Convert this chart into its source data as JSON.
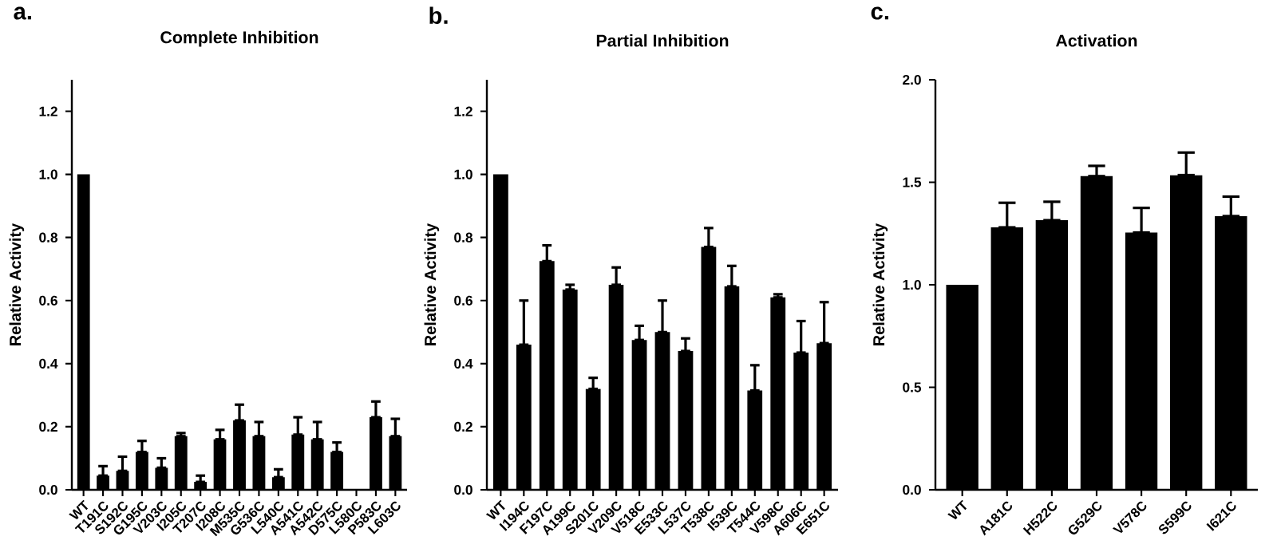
{
  "chart_data": [
    {
      "type": "bar",
      "title": "Complete Inhibition",
      "ylabel": "Relative Activity",
      "annotations": [
        "a."
      ],
      "color": "#000000",
      "categories": [
        "WT",
        "T191C",
        "S192C",
        "G195C",
        "V203C",
        "I205C",
        "T207C",
        "I208C",
        "M535C",
        "G536C",
        "L540C",
        "A541C",
        "A542C",
        "D575C",
        "L580C",
        "P583C",
        "L603C"
      ],
      "values": [
        1.0,
        0.045,
        0.06,
        0.12,
        0.07,
        0.17,
        0.025,
        0.16,
        0.22,
        0.17,
        0.04,
        0.175,
        0.16,
        0.12,
        0,
        0.23,
        0.17
      ],
      "errors": [
        null,
        [
          0.045,
          0.075
        ],
        [
          0.06,
          0.105
        ],
        [
          0.12,
          0.155
        ],
        [
          0.07,
          0.1
        ],
        [
          0.17,
          0.18
        ],
        [
          0.025,
          0.045
        ],
        [
          0.16,
          0.19
        ],
        [
          0.22,
          0.27
        ],
        [
          0.17,
          0.215
        ],
        [
          0.04,
          0.065
        ],
        [
          0.175,
          0.23
        ],
        [
          0.16,
          0.215
        ],
        [
          0.12,
          0.15
        ],
        null,
        [
          0.23,
          0.28
        ],
        [
          0.17,
          0.225
        ]
      ],
      "ylim": [
        0,
        1.3
      ],
      "yticks": [
        {
          "value": 0,
          "label": "0.0"
        },
        0.2,
        0.4,
        0.6,
        0.8,
        {
          "value": 1,
          "label": "1.0"
        },
        1.2
      ]
    },
    {
      "type": "bar",
      "title": "Partial Inhibition",
      "ylabel": "Relative Activity",
      "annotations": [
        "b."
      ],
      "color": "#000000",
      "categories": [
        "WT",
        "I194C",
        "F197C",
        "A199C",
        "S201C",
        "V209C",
        "V518C",
        "E533C",
        "L537C",
        "T538C",
        "I539C",
        "T544C",
        "V598C",
        "A606C",
        "E651C"
      ],
      "values": [
        1.0,
        0.46,
        0.725,
        0.635,
        0.32,
        0.65,
        0.475,
        0.5,
        0.44,
        0.77,
        0.645,
        0.315,
        0.61,
        0.435,
        0.465
      ],
      "errors": [
        null,
        [
          0.46,
          0.6
        ],
        [
          0.725,
          0.775
        ],
        [
          0.635,
          0.65
        ],
        [
          0.32,
          0.355
        ],
        [
          0.65,
          0.705
        ],
        [
          0.475,
          0.52
        ],
        [
          0.5,
          0.6
        ],
        [
          0.44,
          0.48
        ],
        [
          0.77,
          0.83
        ],
        [
          0.645,
          0.71
        ],
        [
          0.315,
          0.395
        ],
        [
          0.61,
          0.62
        ],
        [
          0.435,
          0.535
        ],
        [
          0.465,
          0.595
        ]
      ],
      "ylim": [
        0,
        1.3
      ],
      "yticks": [
        {
          "value": 0,
          "label": "0.0"
        },
        0.2,
        0.4,
        0.6,
        0.8,
        {
          "value": 1,
          "label": "1.0"
        },
        1.2
      ]
    },
    {
      "type": "bar",
      "title": "Activation",
      "ylabel": "Relative Activity",
      "annotations": [
        "c."
      ],
      "color": "#000000",
      "categories": [
        "WT",
        "A181C",
        "H522C",
        "G529C",
        "V578C",
        "S599C",
        "I621C"
      ],
      "values": [
        1.0,
        1.28,
        1.315,
        1.53,
        1.255,
        1.535,
        1.335
      ],
      "errors": [
        null,
        [
          1.28,
          1.4
        ],
        [
          1.315,
          1.405
        ],
        [
          1.53,
          1.58
        ],
        [
          1.255,
          1.375
        ],
        [
          1.535,
          1.645
        ],
        [
          1.335,
          1.43
        ]
      ],
      "ylim": [
        0,
        2.0
      ],
      "yticks": [
        {
          "value": 0,
          "label": "0.0"
        },
        0.5,
        {
          "value": 1,
          "label": "1.0"
        },
        1.5,
        {
          "value": 2,
          "label": "2.0"
        }
      ]
    }
  ]
}
